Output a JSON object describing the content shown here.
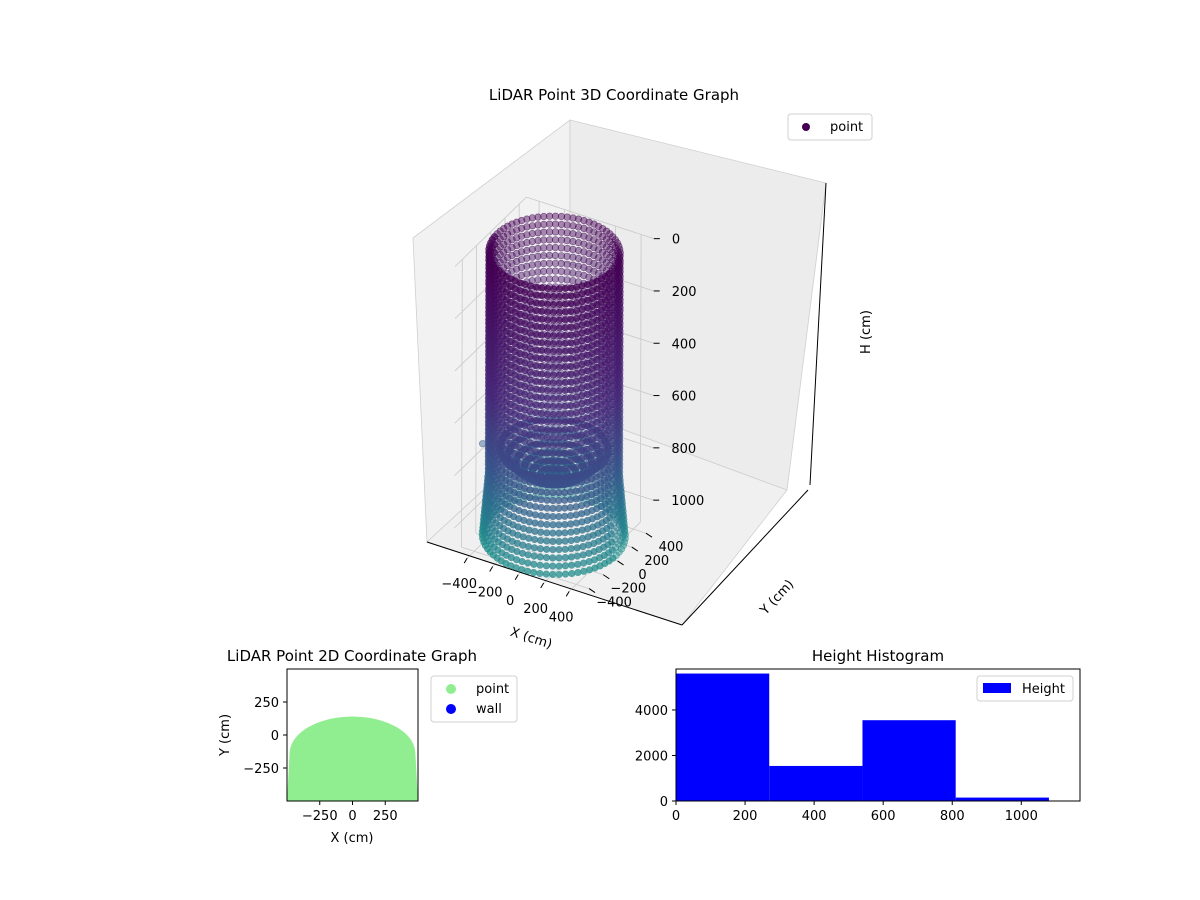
{
  "chart_data": [
    {
      "type": "scatter",
      "dimension": "3d",
      "title": "LiDAR Point 3D Coordinate Graph",
      "xlabel": "X (cm)",
      "ylabel": "Y (cm)",
      "zlabel": "H (cm)",
      "xticks": [
        "−400",
        "−200",
        "0",
        "200",
        "400"
      ],
      "yticks": [
        "−400",
        "−200",
        "0",
        "200",
        "400"
      ],
      "zticks": [
        "0",
        "200",
        "400",
        "600",
        "800",
        "1000"
      ],
      "xlim": [
        -500,
        500
      ],
      "ylim": [
        -500,
        500
      ],
      "zlim": [
        0,
        1100
      ],
      "z_axis_inverted": true,
      "grid": true,
      "legend": {
        "position": "upper right",
        "entries": [
          {
            "label": "point",
            "color": "#440154"
          }
        ]
      },
      "colormap": "viridis",
      "shape": "cylindrical wall of points, radius approx 450 cm, heights 0 to 1080 cm, plus a bowl-shaped floor near 700–900 cm",
      "outliers": [
        {
          "x": -560,
          "y": 0,
          "h": 820
        }
      ]
    },
    {
      "type": "scatter",
      "title": "LiDAR Point 2D Coordinate Graph",
      "xlabel": "X (cm)",
      "ylabel": "Y (cm)",
      "xticks": [
        "−250",
        "0",
        "250"
      ],
      "yticks": [
        "250",
        "0",
        "−250"
      ],
      "xlim": [
        -500,
        500
      ],
      "ylim": [
        -500,
        500
      ],
      "legend": {
        "position": "outside right",
        "entries": [
          {
            "label": "point",
            "color": "#90ee90"
          },
          {
            "label": "wall",
            "color": "#0000ff"
          }
        ]
      },
      "series": [
        {
          "name": "point",
          "color": "#90ee90",
          "shape": "filled half-disc, top at y≈140, spanning x −500 to 500, bottom y −500"
        }
      ]
    },
    {
      "type": "bar",
      "subtype": "histogram",
      "title": "Height Histogram",
      "xticks": [
        "0",
        "200",
        "400",
        "600",
        "800",
        "1000"
      ],
      "yticks": [
        "0",
        "2000",
        "4000"
      ],
      "xlim": [
        0,
        1170
      ],
      "ylim": [
        0,
        5800
      ],
      "legend": {
        "position": "upper right",
        "entries": [
          {
            "label": "Height",
            "color": "#0000ff"
          }
        ]
      },
      "series": [
        {
          "name": "Height",
          "color": "#0000ff",
          "bins": [
            {
              "from": 0,
              "to": 270,
              "count": 5600
            },
            {
              "from": 270,
              "to": 540,
              "count": 1540
            },
            {
              "from": 540,
              "to": 810,
              "count": 3550
            },
            {
              "from": 810,
              "to": 1080,
              "count": 150
            }
          ]
        }
      ]
    }
  ]
}
